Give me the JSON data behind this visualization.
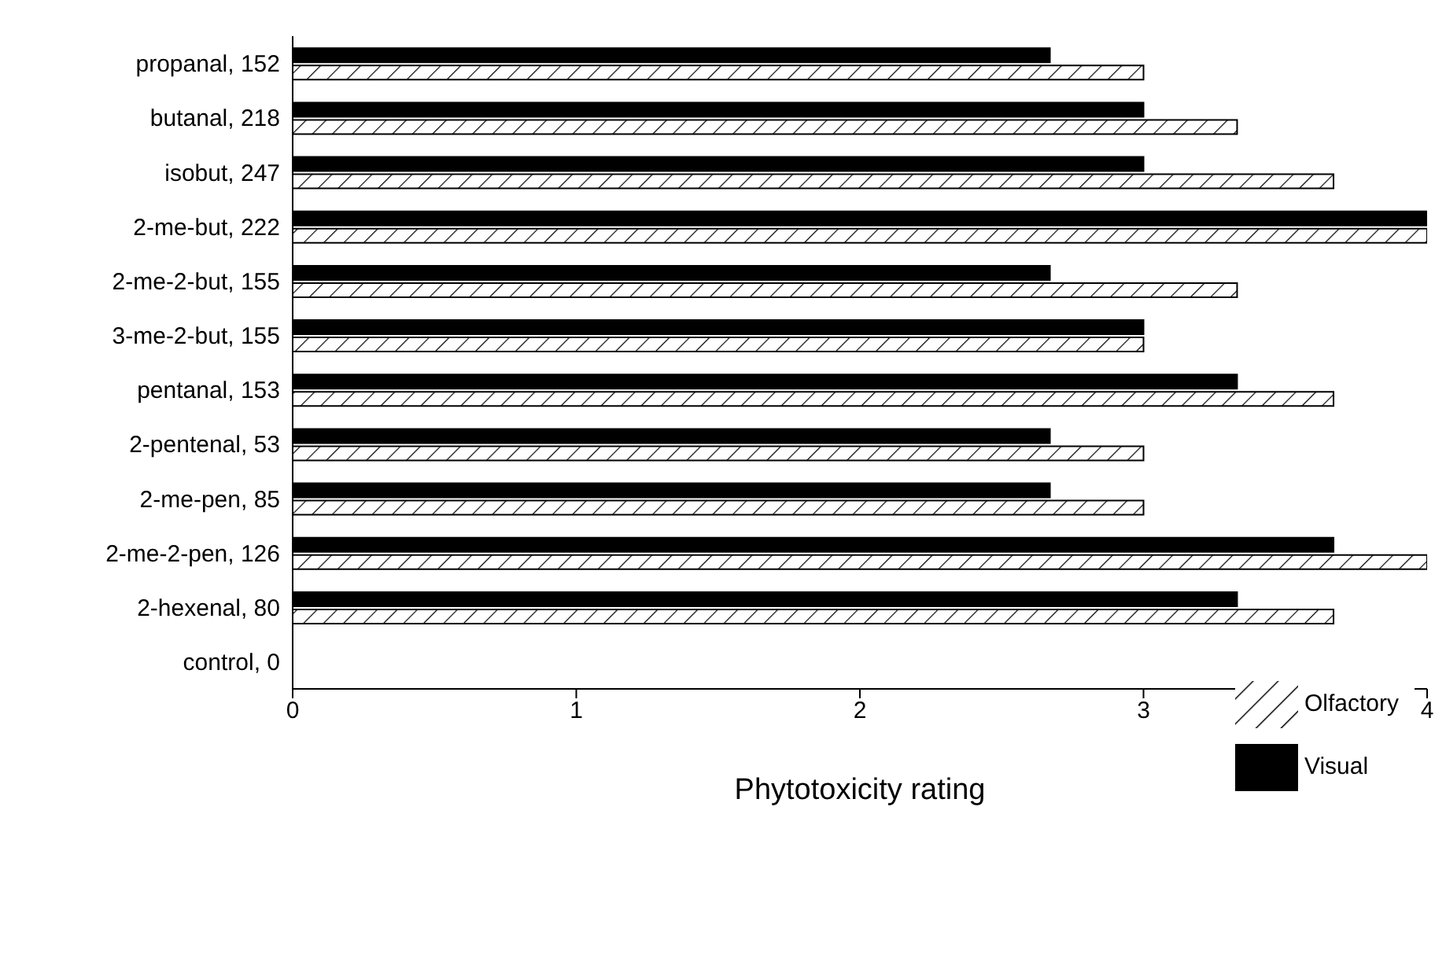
{
  "chart_data": {
    "type": "bar",
    "orientation": "horizontal",
    "xlabel": "Phytotoxicity rating",
    "categories": [
      "propanal, 152",
      "butanal, 218",
      "isobut, 247",
      "2-me-but, 222",
      "2-me-2-but, 155",
      "3-me-2-but, 155",
      "pentanal, 153",
      "2-pentenal, 53",
      "2-me-pen, 85",
      "2-me-2-pen, 126",
      "2-hexenal, 80",
      "control, 0"
    ],
    "series": [
      {
        "name": "Visual",
        "color": "#000000",
        "values": [
          2.67,
          3,
          3,
          4,
          2.67,
          3,
          3.33,
          2.67,
          2.67,
          3.67,
          3.33,
          0
        ]
      },
      {
        "name": "Olfactory",
        "color": "#000000",
        "values": [
          3,
          3.33,
          3.67,
          4,
          3.33,
          3,
          3.67,
          3,
          3,
          4,
          3.67,
          0
        ]
      }
    ],
    "xlim": [
      0,
      4
    ],
    "xticks": [
      0,
      1,
      2,
      3,
      4
    ],
    "legend": "bottom right"
  }
}
